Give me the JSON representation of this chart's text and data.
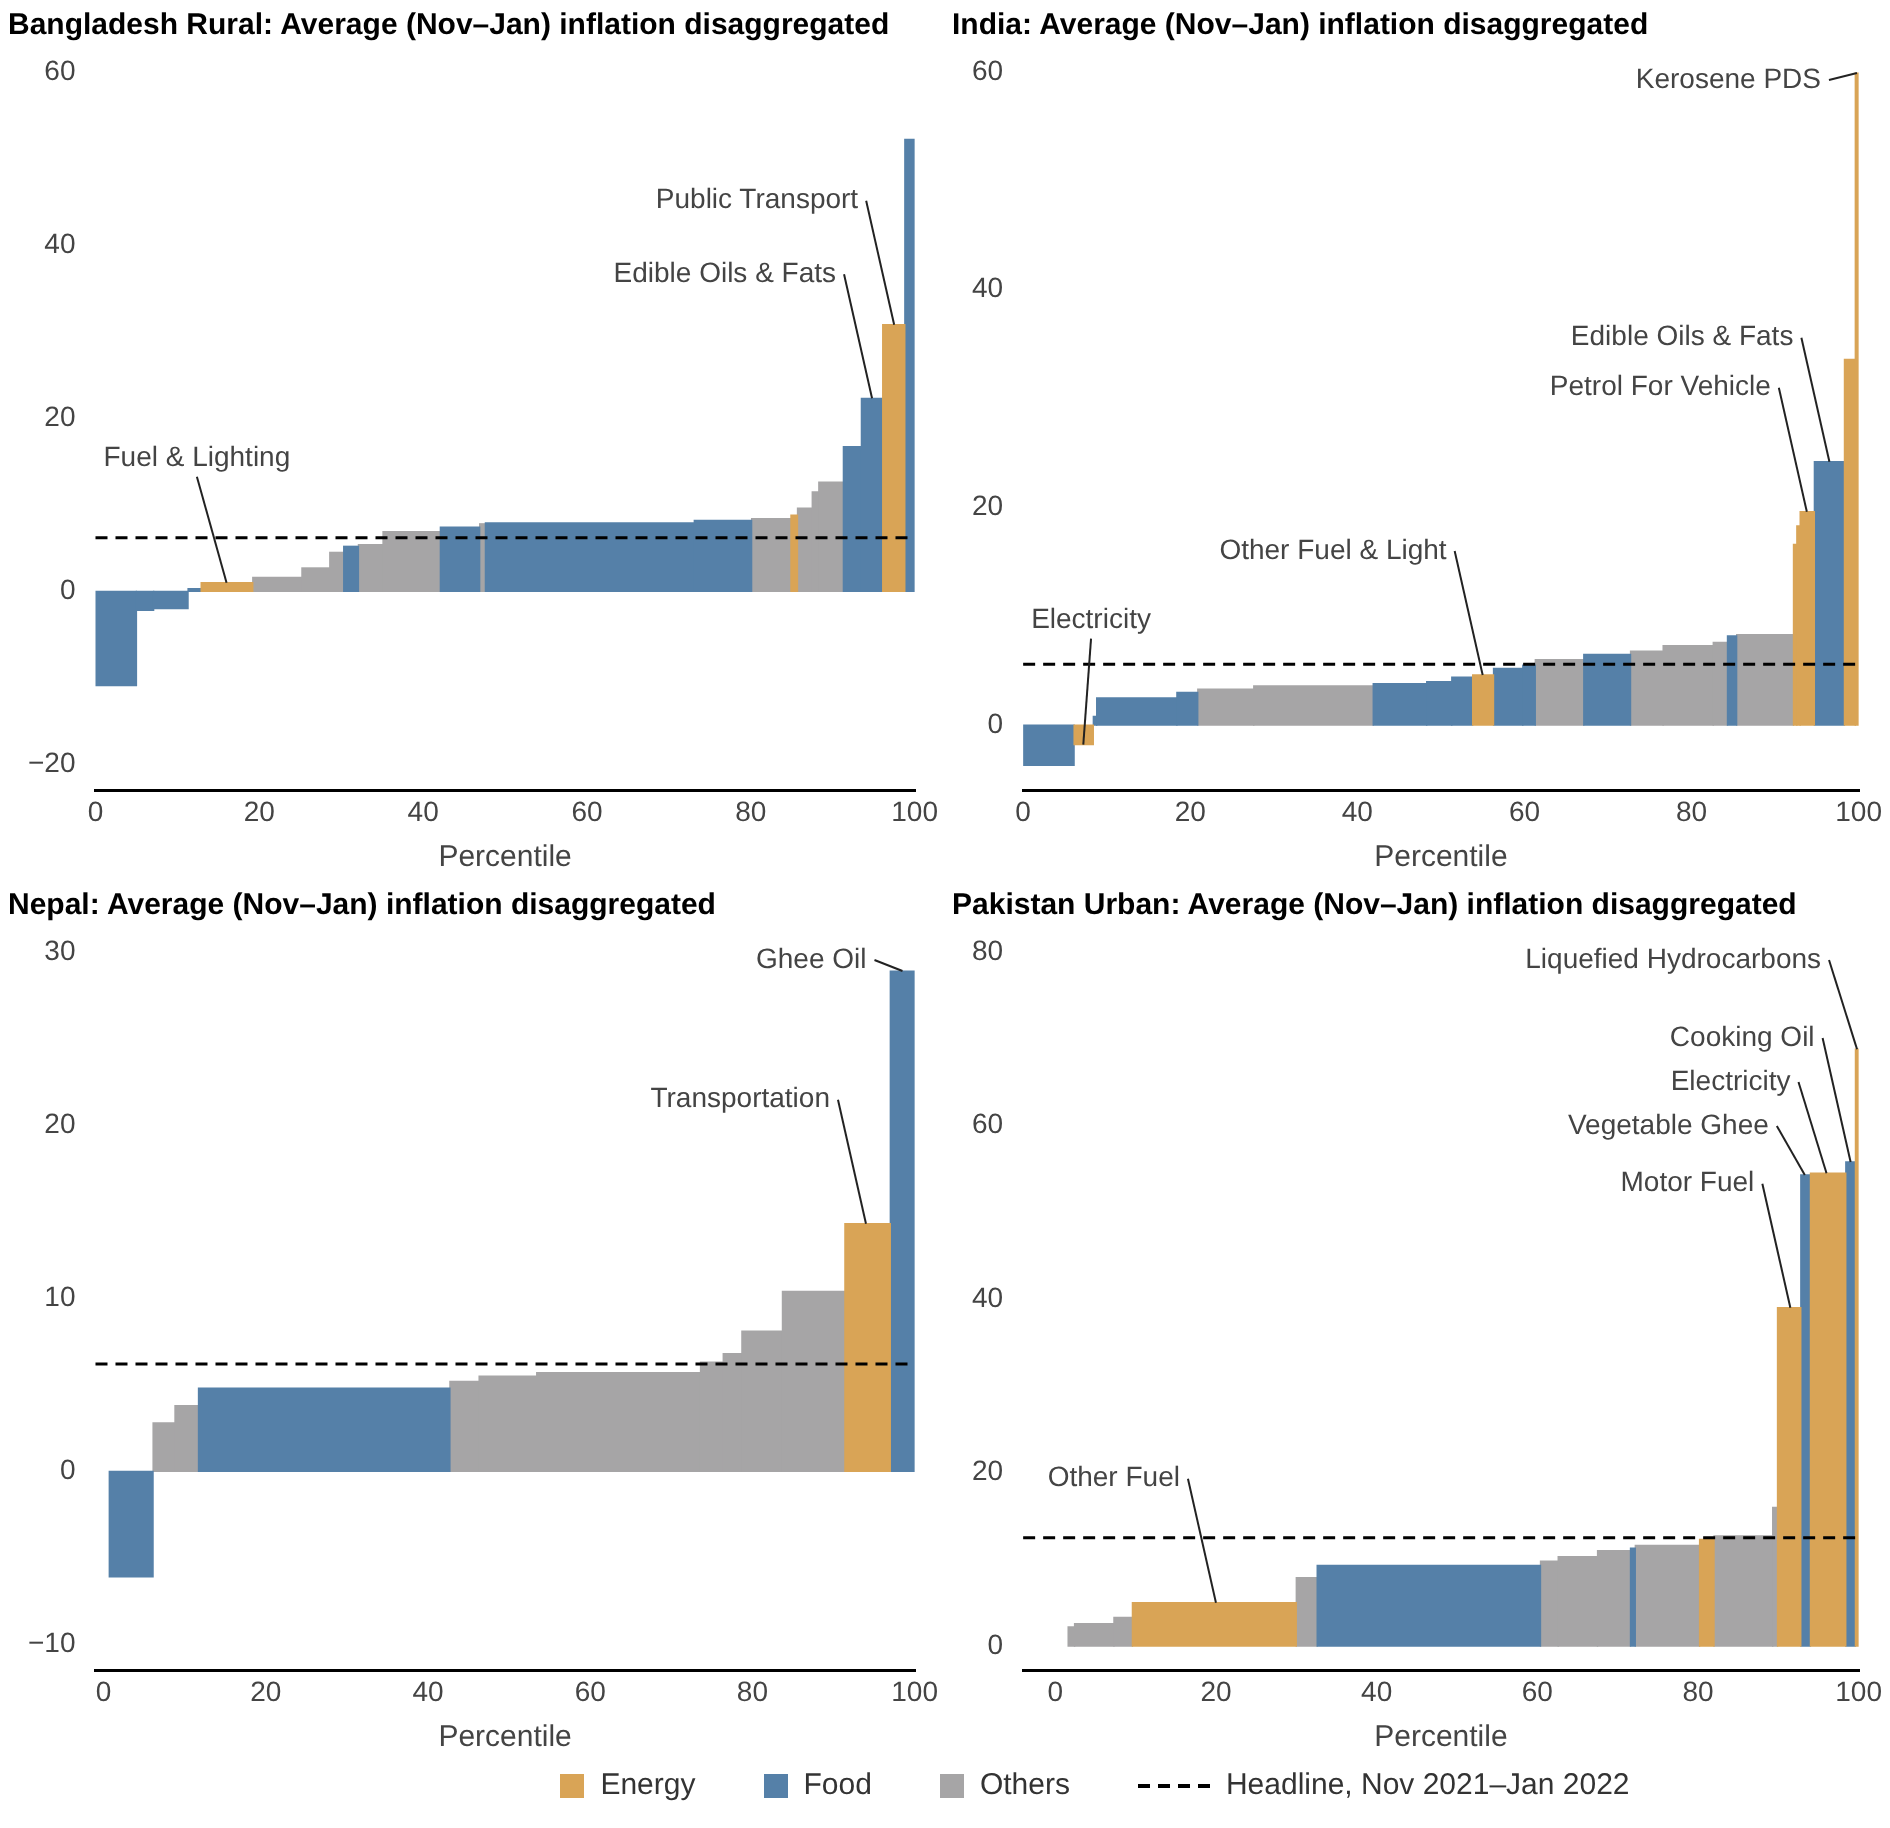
{
  "chart_data": [
    {
      "type": "histogram",
      "title": "Bangladesh Rural: Average (Nov–Jan) inflation disaggregated",
      "xlabel": "Percentile",
      "bins": [
        0,
        5,
        7.1,
        11.3,
        12.9,
        19.2,
        25.2,
        28.6,
        30.3,
        32.1,
        35.1,
        42.1,
        46.9,
        47.6,
        73.1,
        80.1,
        84.9,
        85.7,
        87.5,
        88.3,
        91.3,
        93.5,
        96.1,
        98.8,
        100
      ],
      "series": [
        {
          "color": "#d9a456",
          "values": [
            null,
            null,
            null,
            null,
            1.0,
            null,
            null,
            null,
            null,
            null,
            null,
            null,
            null,
            null,
            null,
            null,
            8.8,
            null,
            null,
            null,
            null,
            null,
            30.8,
            null
          ]
        },
        {
          "color": "#5580a8",
          "values": [
            -10.9,
            -2.2,
            -2,
            0.3,
            null,
            null,
            null,
            null,
            5.2,
            null,
            null,
            7.4,
            null,
            7.9,
            8.2,
            null,
            null,
            null,
            null,
            null,
            16.7,
            22.3,
            null,
            52.2
          ]
        },
        {
          "color": "#a6a5a6",
          "values": [
            null,
            null,
            null,
            null,
            null,
            1.6,
            2.7,
            4.5,
            null,
            5.4,
            6.9,
            null,
            7.8,
            null,
            null,
            8.4,
            null,
            9.6,
            11.5,
            12.6,
            null,
            null,
            null,
            null
          ]
        }
      ],
      "xlim": [
        0,
        100
      ],
      "xticks": [
        0,
        20,
        40,
        60,
        80,
        100
      ],
      "ylim": [
        -23,
        60
      ],
      "yticks": [
        {
          "value": -20,
          "label": "−20"
        },
        0,
        20,
        40,
        60
      ],
      "ref_lines": [
        {
          "axis": "y",
          "value": 6.2,
          "color": "#000000",
          "line_style": "dashed"
        }
      ],
      "annotations": [
        {
          "text": "Fuel & Lighting",
          "x": 16,
          "y": 1.0
        },
        {
          "text": "Edible Oils & Fats",
          "x": 94.8,
          "y": 22.3
        },
        {
          "text": "Public Transport",
          "x": 97.5,
          "y": 30.8
        }
      ]
    },
    {
      "type": "histogram",
      "title": "India: Average (Nov–Jan) inflation disaggregated",
      "xlabel": "Percentile",
      "bins": [
        0,
        6.1,
        8.4,
        8.8,
        18.4,
        20.9,
        27.6,
        41.9,
        48.3,
        51.3,
        53.8,
        56.3,
        59.8,
        61.3,
        67.1,
        72.7,
        76.6,
        82.6,
        84.3,
        85.4,
        92.2,
        92.6,
        93.0,
        94.7,
        98.3,
        99.6,
        100
      ],
      "series": [
        {
          "color": "#d9a456",
          "values": [
            null,
            -1.8,
            null,
            null,
            null,
            null,
            null,
            null,
            null,
            null,
            4.6,
            null,
            null,
            null,
            null,
            null,
            null,
            null,
            null,
            null,
            16.6,
            18.3,
            19.6,
            null,
            33.6,
            59.9
          ]
        },
        {
          "color": "#5580a8",
          "values": [
            -3.7,
            null,
            0.8,
            2.5,
            3.0,
            null,
            null,
            3.8,
            4.0,
            4.4,
            null,
            5.2,
            5.5,
            null,
            6.5,
            null,
            null,
            null,
            8.2,
            null,
            null,
            null,
            null,
            24.2,
            null,
            null
          ]
        },
        {
          "color": "#a6a5a6",
          "values": [
            null,
            null,
            null,
            null,
            null,
            3.3,
            3.6,
            null,
            null,
            null,
            null,
            null,
            null,
            6.0,
            null,
            6.8,
            7.3,
            7.6,
            null,
            8.3,
            null,
            null,
            null,
            null,
            null,
            null
          ]
        }
      ],
      "xlim": [
        0,
        100
      ],
      "xticks": [
        0,
        20,
        40,
        60,
        80,
        100
      ],
      "ylim": [
        -6,
        60
      ],
      "yticks": [
        0,
        20,
        40,
        60
      ],
      "ref_lines": [
        {
          "axis": "y",
          "value": 5.6,
          "color": "#000000",
          "line_style": "dashed"
        }
      ],
      "annotations": [
        {
          "text": "Electricity",
          "x": 7.2,
          "y": -1.8
        },
        {
          "text": "Other Fuel & Light",
          "x": 55,
          "y": 4.6
        },
        {
          "text": "Petrol For Vehicle",
          "x": 93.8,
          "y": 19.6
        },
        {
          "text": "Edible Oils & Fats",
          "x": 96.5,
          "y": 24.2
        },
        {
          "text": "Kerosene PDS",
          "x": 99.8,
          "y": 59.9
        }
      ]
    },
    {
      "type": "histogram",
      "title": "Nepal: Average (Nov–Jan) inflation disaggregated",
      "xlabel": "Percentile",
      "bins": [
        0.7,
        6.1,
        8.8,
        11.7,
        42.7,
        46.3,
        53.4,
        73.6,
        76.4,
        78.7,
        83.7,
        91.4,
        97.0,
        100
      ],
      "series": [
        {
          "color": "#d9a456",
          "values": [
            null,
            null,
            null,
            null,
            null,
            null,
            null,
            null,
            null,
            null,
            null,
            14.3,
            null
          ]
        },
        {
          "color": "#5580a8",
          "values": [
            -6.1,
            null,
            null,
            4.8,
            null,
            null,
            null,
            null,
            null,
            null,
            null,
            null,
            28.9
          ]
        },
        {
          "color": "#a6a5a6",
          "values": [
            null,
            2.8,
            3.8,
            null,
            5.2,
            5.5,
            5.7,
            6.3,
            6.8,
            8.1,
            10.4,
            null,
            null
          ]
        }
      ],
      "xlim": [
        -1,
        100
      ],
      "xticks": [
        0,
        20,
        40,
        60,
        80,
        100
      ],
      "ylim": [
        -11.5,
        30
      ],
      "yticks": [
        {
          "value": -10,
          "label": "−10"
        },
        0,
        10,
        20,
        30
      ],
      "ref_lines": [
        {
          "axis": "y",
          "value": 6.2,
          "color": "#000000",
          "line_style": "dashed"
        }
      ],
      "annotations": [
        {
          "text": "Transportation",
          "x": 94,
          "y": 14.3
        },
        {
          "text": "Ghee Oil",
          "x": 98.5,
          "y": 28.9
        }
      ]
    },
    {
      "type": "histogram",
      "title": "Pakistan Urban: Average (Nov–Jan) inflation disaggregated",
      "xlabel": "Percentile",
      "bins": [
        1.6,
        2.4,
        7.3,
        9.6,
        30,
        32.6,
        60.4,
        62.6,
        67.5,
        71.6,
        72.2,
        80.2,
        82.0,
        89.3,
        89.9,
        92.8,
        94.0,
        98.4,
        99.6,
        100
      ],
      "series": [
        {
          "name": "Energy",
          "color": "#d9a456",
          "values": [
            null,
            null,
            null,
            5.0,
            null,
            null,
            null,
            null,
            null,
            null,
            null,
            12.3,
            null,
            null,
            39,
            null,
            54.5,
            null,
            68.8
          ]
        },
        {
          "name": "Food",
          "color": "#5580a8",
          "values": [
            null,
            null,
            null,
            null,
            null,
            9.3,
            null,
            null,
            null,
            11.3,
            null,
            null,
            null,
            null,
            null,
            54.3,
            null,
            55.8,
            null
          ]
        },
        {
          "name": "Others",
          "color": "#a6a5a6",
          "values": [
            2.2,
            2.6,
            3.3,
            null,
            7.9,
            null,
            9.8,
            10.3,
            11,
            null,
            11.6,
            null,
            12.7,
            16,
            null,
            null,
            null,
            null,
            null
          ]
        }
      ],
      "xlim": [
        -4,
        100
      ],
      "xticks": [
        0,
        20,
        40,
        60,
        80,
        100
      ],
      "ylim": [
        -2.8,
        80
      ],
      "yticks": [
        0,
        20,
        40,
        60,
        80
      ],
      "ref_lines": [
        {
          "axis": "y",
          "value": 12.5,
          "label": "Headline, Nov 2021–Jan 2022",
          "color": "#000000",
          "line_style": "dashed"
        }
      ],
      "legend": "bottom",
      "annotations": [
        {
          "text": "Other Fuel",
          "x": 20,
          "y": 5.0
        },
        {
          "text": "Motor Fuel",
          "x": 91.5,
          "y": 39
        },
        {
          "text": "Vegetable Ghee",
          "x": 93.3,
          "y": 54.3
        },
        {
          "text": "Electricity",
          "x": 96,
          "y": 54.5
        },
        {
          "text": "Cooking Oil",
          "x": 99,
          "y": 55.8
        },
        {
          "text": "Liquefied Hydrocarbons",
          "x": 99.8,
          "y": 68.8
        }
      ]
    }
  ]
}
